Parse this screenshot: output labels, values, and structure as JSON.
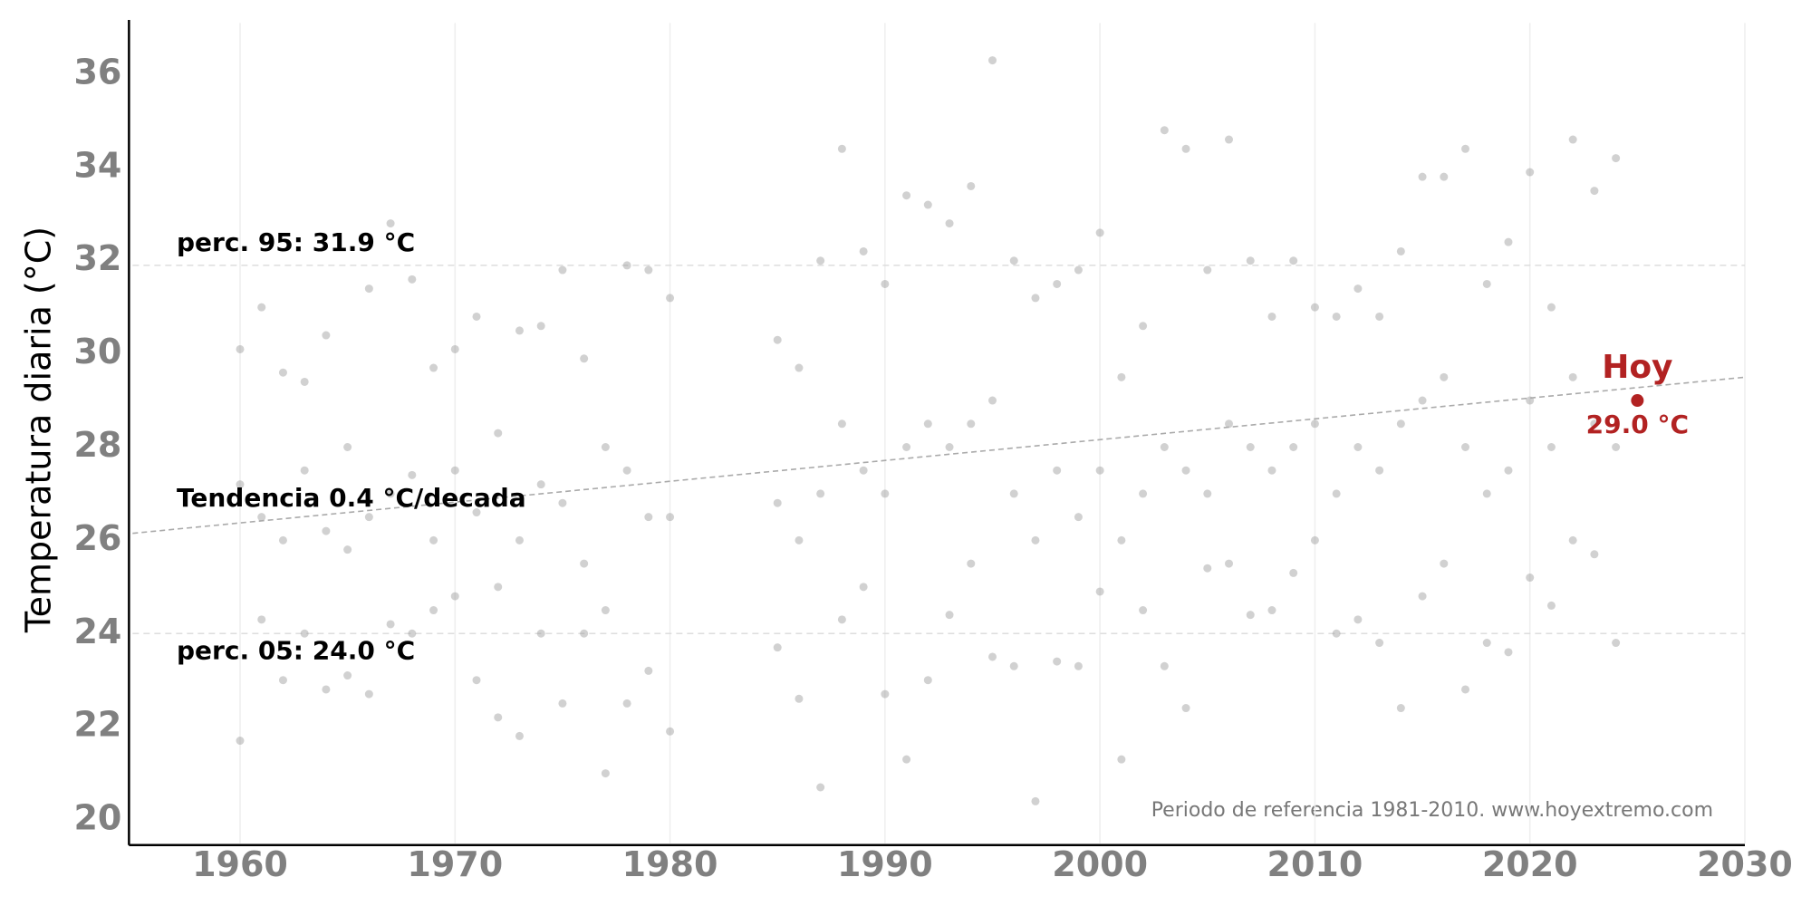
{
  "chart_data": {
    "type": "scatter",
    "y_label": "Temperatura diaria (°C)",
    "footer": "Periodo de referencia 1981-2010. www.hoyextremo.com",
    "xlim": [
      1955,
      2030
    ],
    "ylim": [
      19.5,
      37.1
    ],
    "xticks": [
      1960,
      1970,
      1980,
      1990,
      2000,
      2010,
      2020,
      2030
    ],
    "yticks": [
      20,
      22,
      24,
      26,
      28,
      30,
      32,
      34,
      36
    ],
    "grid": true,
    "series": [
      {
        "color": "#999999",
        "x": [
          1960,
          1960,
          1960,
          1961,
          1961,
          1961,
          1962,
          1962,
          1962,
          1963,
          1963,
          1963,
          1964,
          1964,
          1964,
          1965,
          1965,
          1965,
          1966,
          1966,
          1966,
          1967,
          1967,
          1967,
          1968,
          1968,
          1968,
          1969,
          1969,
          1969,
          1970,
          1970,
          1970,
          1971,
          1971,
          1971,
          1972,
          1972,
          1972,
          1973,
          1973,
          1973,
          1974,
          1974,
          1974,
          1975,
          1975,
          1975,
          1976,
          1976,
          1976,
          1977,
          1977,
          1977,
          1978,
          1978,
          1978,
          1979,
          1979,
          1979,
          1980,
          1980,
          1980,
          1985,
          1985,
          1985,
          1986,
          1986,
          1986,
          1987,
          1987,
          1987,
          1988,
          1988,
          1988,
          1989,
          1989,
          1989,
          1990,
          1990,
          1990,
          1991,
          1991,
          1991,
          1992,
          1992,
          1992,
          1993,
          1993,
          1993,
          1994,
          1994,
          1994,
          1995,
          1995,
          1995,
          1996,
          1996,
          1996,
          1997,
          1997,
          1997,
          1998,
          1998,
          1998,
          1999,
          1999,
          1999,
          2000,
          2000,
          2000,
          2001,
          2001,
          2001,
          2002,
          2002,
          2002,
          2003,
          2003,
          2003,
          2004,
          2004,
          2004,
          2005,
          2005,
          2005,
          2006,
          2006,
          2006,
          2007,
          2007,
          2007,
          2008,
          2008,
          2008,
          2009,
          2009,
          2009,
          2010,
          2010,
          2010,
          2011,
          2011,
          2011,
          2012,
          2012,
          2012,
          2013,
          2013,
          2013,
          2014,
          2014,
          2014,
          2015,
          2015,
          2015,
          2016,
          2016,
          2016,
          2017,
          2017,
          2017,
          2018,
          2018,
          2018,
          2019,
          2019,
          2019,
          2020,
          2020,
          2020,
          2021,
          2021,
          2021,
          2022,
          2022,
          2022,
          2023,
          2023,
          2023,
          2024,
          2024,
          2024
        ],
        "values": [
          30.1,
          27.2,
          21.7,
          31.0,
          26.5,
          24.3,
          29.6,
          26.0,
          23.0,
          29.4,
          27.5,
          24.0,
          30.4,
          26.2,
          22.8,
          28.0,
          25.8,
          23.1,
          31.4,
          26.5,
          22.7,
          32.8,
          27.0,
          24.2,
          31.6,
          27.4,
          24.0,
          29.7,
          26.0,
          24.5,
          30.1,
          27.5,
          24.8,
          30.8,
          26.6,
          23.0,
          28.3,
          25.0,
          22.2,
          30.5,
          26.0,
          21.8,
          30.6,
          27.2,
          24.0,
          31.8,
          26.8,
          22.5,
          29.9,
          25.5,
          24.0,
          28.0,
          24.5,
          21.0,
          31.9,
          27.5,
          22.5,
          31.8,
          26.5,
          23.2,
          31.2,
          26.5,
          21.9,
          30.3,
          26.8,
          23.7,
          29.7,
          26.0,
          22.6,
          32.0,
          27.0,
          20.7,
          34.4,
          28.5,
          24.3,
          32.2,
          27.5,
          25.0,
          31.5,
          27.0,
          22.7,
          33.4,
          28.0,
          21.3,
          33.2,
          28.5,
          23.0,
          32.8,
          28.0,
          24.4,
          33.6,
          28.5,
          25.5,
          36.3,
          29.0,
          23.5,
          32.0,
          27.0,
          23.3,
          31.2,
          26.0,
          20.4,
          31.5,
          27.5,
          23.4,
          31.8,
          26.5,
          23.3,
          32.6,
          27.5,
          24.9,
          29.5,
          26.0,
          21.3,
          30.6,
          27.0,
          24.5,
          34.8,
          28.0,
          23.3,
          34.4,
          27.5,
          22.4,
          31.8,
          27.0,
          25.4,
          34.6,
          28.5,
          25.5,
          32.0,
          28.0,
          24.4,
          30.8,
          27.5,
          24.5,
          32.0,
          28.0,
          25.3,
          31.0,
          28.5,
          26.0,
          30.8,
          27.0,
          24.0,
          31.4,
          28.0,
          24.3,
          30.8,
          27.5,
          23.8,
          32.2,
          28.5,
          22.4,
          33.8,
          29.0,
          24.8,
          33.8,
          29.5,
          25.5,
          34.4,
          28.0,
          22.8,
          31.5,
          27.0,
          23.8,
          32.4,
          27.5,
          23.6,
          33.9,
          29.0,
          25.2,
          31.0,
          28.0,
          24.6,
          34.6,
          29.5,
          26.0,
          33.5,
          28.5,
          25.7,
          34.2,
          28.0,
          23.8
        ]
      }
    ],
    "reference_lines": [
      {
        "label": "perc. 95: 31.9 °C",
        "value": 31.9
      },
      {
        "label": "perc. 05: 24.0 °C",
        "value": 24.0
      }
    ],
    "trend": {
      "label": "Tendencia 0.4 °C/decada",
      "x": [
        1955,
        2030
      ],
      "values": [
        26.15,
        29.5
      ]
    },
    "today": {
      "label": "Hoy",
      "x": 2025,
      "value": 29.0,
      "value_label": "29.0 °C",
      "color": "#b22222"
    }
  }
}
